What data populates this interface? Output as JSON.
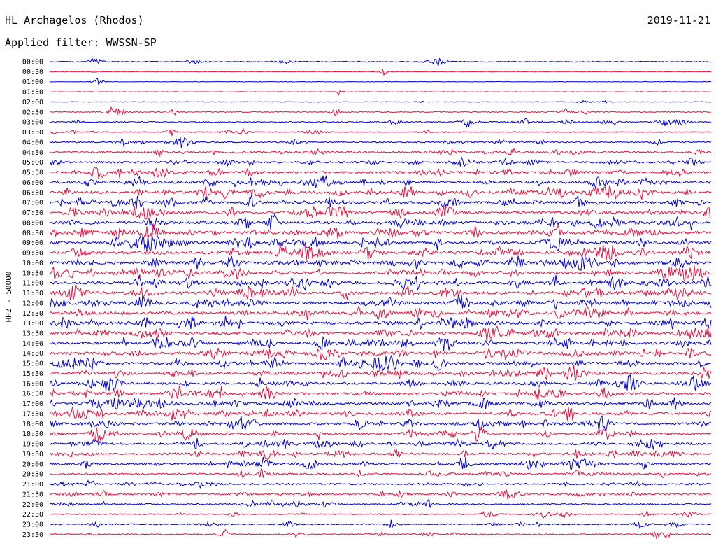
{
  "header": {
    "station": "HL Archagelos (Rhodos)",
    "date": "2019-11-21",
    "filter": "Applied filter: WWSSN-SP"
  },
  "chart_data": {
    "type": "line",
    "ylabel": "HHZ - 50000",
    "series_colors": [
      "#0000e0",
      "#e8103c"
    ],
    "rows": [
      {
        "label": "00:00",
        "activity": 0.2
      },
      {
        "label": "00:30",
        "activity": 0.05
      },
      {
        "label": "01:00",
        "activity": 0.03
      },
      {
        "label": "01:30",
        "activity": 0.03
      },
      {
        "label": "02:00",
        "activity": 0.1
      },
      {
        "label": "02:30",
        "activity": 0.25
      },
      {
        "label": "03:00",
        "activity": 0.35
      },
      {
        "label": "03:30",
        "activity": 0.25
      },
      {
        "label": "04:00",
        "activity": 0.35
      },
      {
        "label": "04:30",
        "activity": 0.5
      },
      {
        "label": "05:00",
        "activity": 0.6
      },
      {
        "label": "05:30",
        "activity": 0.7
      },
      {
        "label": "06:00",
        "activity": 0.8
      },
      {
        "label": "06:30",
        "activity": 0.85
      },
      {
        "label": "07:00",
        "activity": 0.85
      },
      {
        "label": "07:30",
        "activity": 0.9
      },
      {
        "label": "08:00",
        "activity": 1.0
      },
      {
        "label": "08:30",
        "activity": 1.0
      },
      {
        "label": "09:00",
        "activity": 1.0
      },
      {
        "label": "09:30",
        "activity": 1.0
      },
      {
        "label": "10:00",
        "activity": 1.0
      },
      {
        "label": "10:30",
        "activity": 1.0
      },
      {
        "label": "11:00",
        "activity": 1.0
      },
      {
        "label": "11:30",
        "activity": 1.0
      },
      {
        "label": "12:00",
        "activity": 1.0
      },
      {
        "label": "12:30",
        "activity": 0.95
      },
      {
        "label": "13:00",
        "activity": 0.95
      },
      {
        "label": "13:30",
        "activity": 0.9
      },
      {
        "label": "14:00",
        "activity": 0.9
      },
      {
        "label": "14:30",
        "activity": 0.9
      },
      {
        "label": "15:00",
        "activity": 0.9
      },
      {
        "label": "15:30",
        "activity": 0.85
      },
      {
        "label": "16:00",
        "activity": 0.8
      },
      {
        "label": "16:30",
        "activity": 0.8
      },
      {
        "label": "17:00",
        "activity": 0.85
      },
      {
        "label": "17:30",
        "activity": 0.8
      },
      {
        "label": "18:00",
        "activity": 0.8
      },
      {
        "label": "18:30",
        "activity": 0.7
      },
      {
        "label": "19:00",
        "activity": 0.7
      },
      {
        "label": "19:30",
        "activity": 0.7
      },
      {
        "label": "20:00",
        "activity": 0.65
      },
      {
        "label": "20:30",
        "activity": 0.55
      },
      {
        "label": "21:00",
        "activity": 0.55
      },
      {
        "label": "21:30",
        "activity": 0.5
      },
      {
        "label": "22:00",
        "activity": 0.4
      },
      {
        "label": "22:30",
        "activity": 0.3
      },
      {
        "label": "23:00",
        "activity": 0.3
      },
      {
        "label": "23:30",
        "activity": 0.3
      }
    ]
  }
}
